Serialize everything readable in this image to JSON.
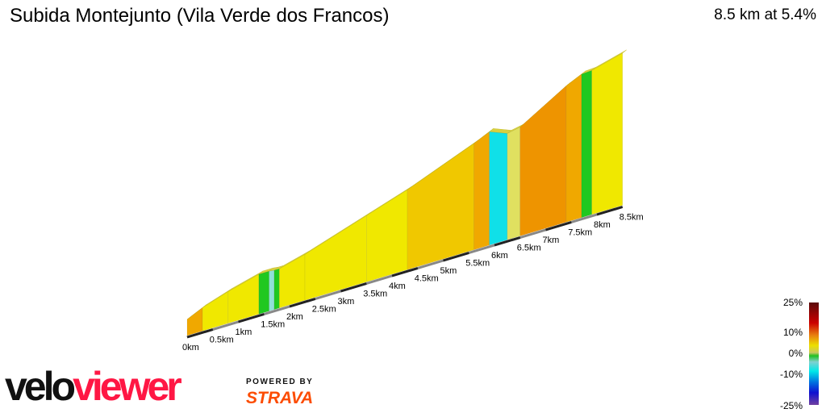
{
  "header": {
    "title": "Subida Montejunto (Vila Verde dos Francos)",
    "summary": "8.5 km at 5.4%"
  },
  "chart_data": {
    "type": "area",
    "title": "Subida Montejunto (Vila Verde dos Francos)",
    "distance_km": 8.5,
    "avg_gradient_pct": 5.4,
    "x_ticks": [
      "0km",
      "0.5km",
      "1km",
      "1.5km",
      "2km",
      "2.5km",
      "3km",
      "3.5km",
      "4km",
      "4.5km",
      "5km",
      "5.5km",
      "6km",
      "6.5km",
      "7km",
      "7.5km",
      "8km",
      "8.5km"
    ],
    "segments": [
      {
        "from_km": 0,
        "to_km": 0.3,
        "gradient_pct": 7
      },
      {
        "from_km": 0.3,
        "to_km": 0.8,
        "gradient_pct": 5
      },
      {
        "from_km": 0.8,
        "to_km": 1.4,
        "gradient_pct": 4
      },
      {
        "from_km": 1.4,
        "to_km": 1.6,
        "gradient_pct": 0
      },
      {
        "from_km": 1.6,
        "to_km": 1.7,
        "gradient_pct": -2
      },
      {
        "from_km": 1.7,
        "to_km": 1.8,
        "gradient_pct": 0
      },
      {
        "from_km": 1.8,
        "to_km": 2.3,
        "gradient_pct": 4
      },
      {
        "from_km": 2.3,
        "to_km": 3.5,
        "gradient_pct": 5
      },
      {
        "from_km": 3.5,
        "to_km": 4.3,
        "gradient_pct": 5
      },
      {
        "from_km": 4.3,
        "to_km": 5.6,
        "gradient_pct": 6
      },
      {
        "from_km": 5.6,
        "to_km": 5.9,
        "gradient_pct": 7
      },
      {
        "from_km": 5.9,
        "to_km": 6.25,
        "gradient_pct": -6
      },
      {
        "from_km": 6.25,
        "to_km": 6.5,
        "gradient_pct": 3
      },
      {
        "from_km": 6.5,
        "to_km": 7.4,
        "gradient_pct": 9
      },
      {
        "from_km": 7.4,
        "to_km": 7.7,
        "gradient_pct": 7
      },
      {
        "from_km": 7.7,
        "to_km": 7.9,
        "gradient_pct": 1
      },
      {
        "from_km": 7.9,
        "to_km": 8.5,
        "gradient_pct": 4
      }
    ],
    "legend": {
      "labels": [
        "25%",
        "10%",
        "0%",
        "-10%",
        "-25%"
      ],
      "placement": "bottom-right"
    }
  },
  "branding": {
    "logo_velo": "velo",
    "logo_viewer": "viewer",
    "powered_by": "POWERED BY",
    "strava": "STRAVA"
  }
}
